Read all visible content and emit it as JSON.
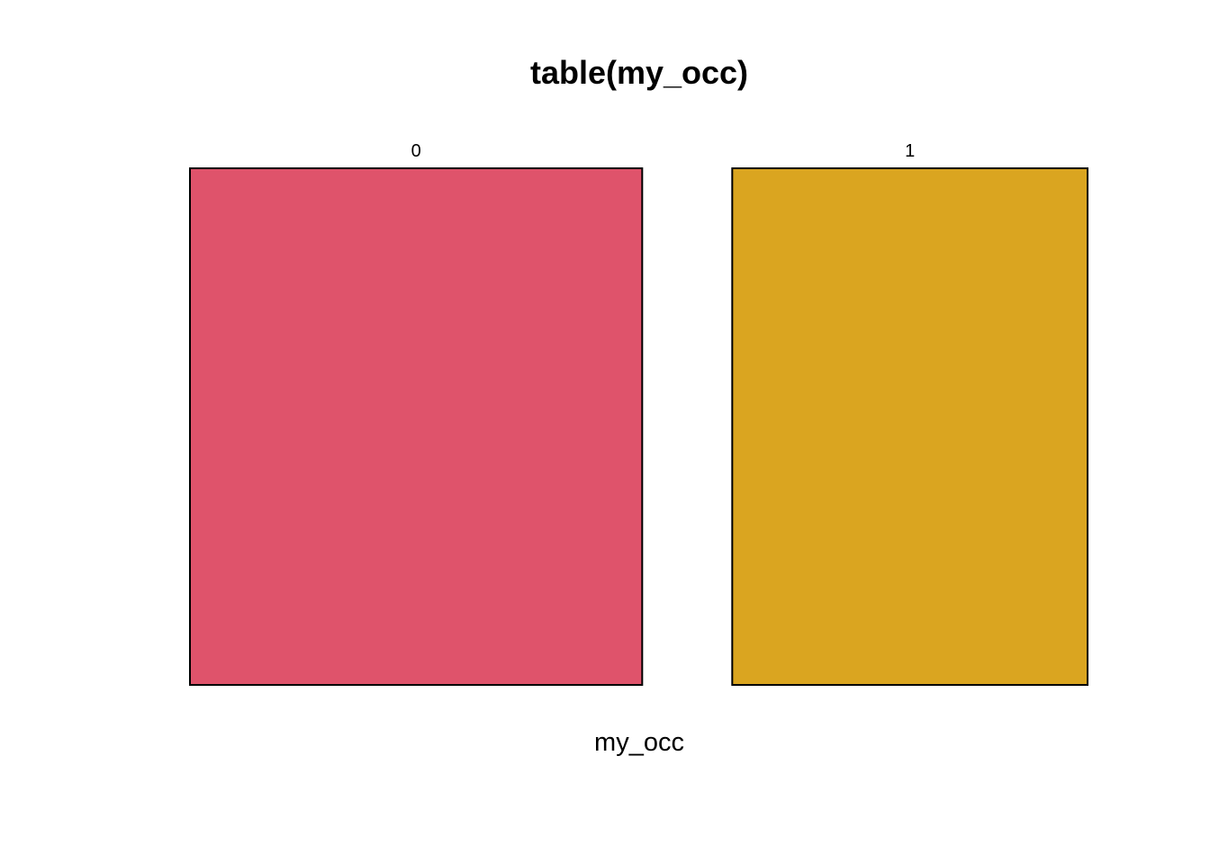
{
  "chart_data": {
    "type": "mosaic",
    "title": "table(my_occ)",
    "xlabel": "my_occ",
    "ylabel": "",
    "categories": [
      "0",
      "1"
    ],
    "proportions": [
      0.56,
      0.44
    ],
    "colors": [
      "#DF536B",
      "#DAA520"
    ]
  }
}
